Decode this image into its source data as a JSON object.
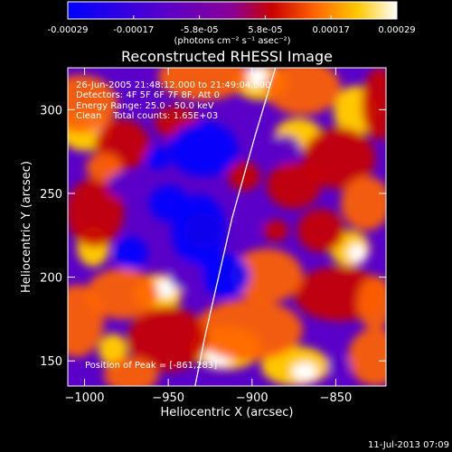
{
  "chart_data": [
    {
      "type": "colorbar",
      "tick_labels": [
        "-0.00029",
        "-0.00017",
        "-5.8e-05",
        "5.8e-05",
        "0.00017",
        "0.00029"
      ],
      "range": [
        -0.00029,
        0.00029
      ],
      "unit_label": "(photons cm⁻² s⁻¹ asec⁻²)",
      "colormap": [
        "#0000ff",
        "#5a00c8",
        "#8a0096",
        "#c80000",
        "#ff6400",
        "#ffc800",
        "#ffffff"
      ]
    },
    {
      "type": "heatmap",
      "title": "Reconstructed RHESSI Image",
      "xlabel": "Heliocentric X (arcsec)",
      "ylabel": "Heliocentric Y (arcsec)",
      "xlim": [
        -1010,
        -820
      ],
      "ylim": [
        135,
        325
      ],
      "x_ticks": [
        -1000,
        -950,
        -900,
        -850
      ],
      "y_ticks": [
        150,
        200,
        250,
        300
      ],
      "x_tick_labels": [
        "−1000",
        "−950",
        "−900",
        "−850"
      ],
      "y_tick_labels": [
        "150",
        "200",
        "250",
        "300"
      ],
      "annotations": [
        "26-Jun-2005 21:48:12.000 to 21:49:04.000",
        "Detectors: 4F 5F 6F 7F 8F, Att 0",
        "Energy Range: 25.0 - 50.0 keV",
        "Clean    Total counts: 1.65E+03"
      ],
      "peak_label": "Position of Peak = [-861,283]",
      "peak_position": [
        -861,
        283
      ],
      "limb_curve": {
        "x": [
          -934,
          -928,
          -920,
          -912,
          -905,
          -898,
          -892,
          -886
        ],
        "y": [
          135,
          165,
          200,
          235,
          260,
          285,
          305,
          325
        ]
      }
    }
  ],
  "footer": {
    "timestamp": "11-Jul-2013 07:09"
  }
}
